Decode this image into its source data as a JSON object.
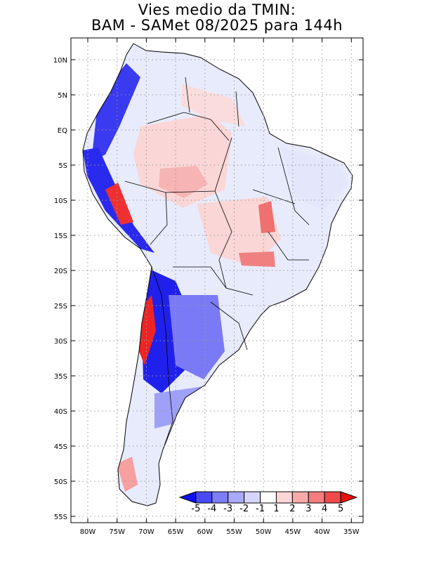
{
  "title": {
    "line1": "Vies medio da TMIN:",
    "line2": "BAM - SAMet 08/2025  para 144h"
  },
  "axes": {
    "lat_labels": [
      "10N",
      "5N",
      "EQ",
      "5S",
      "10S",
      "15S",
      "20S",
      "25S",
      "30S",
      "35S",
      "40S",
      "45S",
      "50S",
      "55S"
    ],
    "lon_labels": [
      "80W",
      "75W",
      "70W",
      "65W",
      "60W",
      "55W",
      "50W",
      "45W",
      "40W",
      "35W"
    ]
  },
  "colorbar": {
    "labels": [
      "-5",
      "-4",
      "-3",
      "-2",
      "-1",
      "1",
      "2",
      "3",
      "4",
      "5"
    ],
    "colors": [
      "#1010f0",
      "#4a4af5",
      "#7d7df7",
      "#a9a9fa",
      "#d6d6fc",
      "#ffffff",
      "#fcd6d6",
      "#f9a9a9",
      "#f57d7d",
      "#f04a4a",
      "#e81010"
    ]
  },
  "colors": {
    "land_base": "#e6eafc",
    "coast": "#000000",
    "grid": "#9a9a9a"
  }
}
